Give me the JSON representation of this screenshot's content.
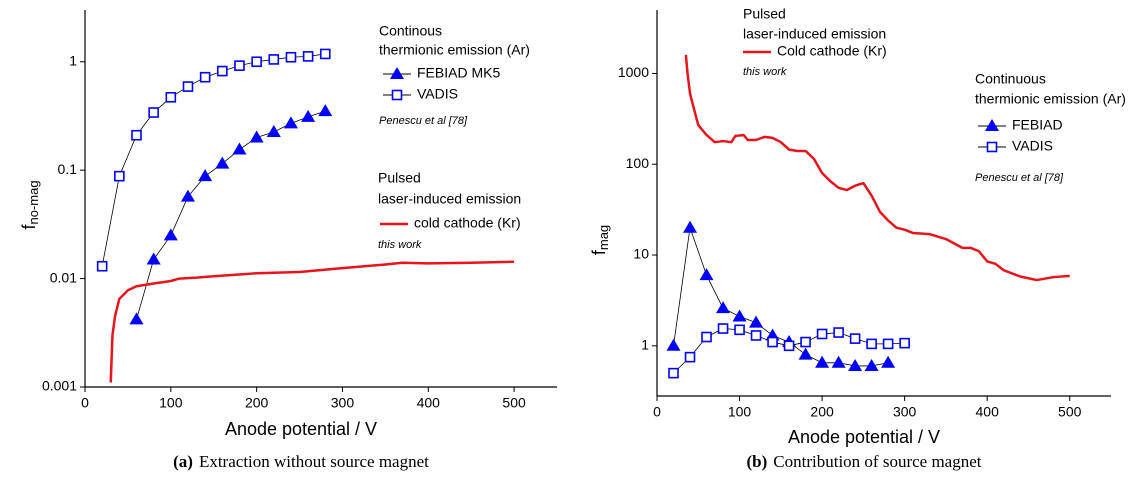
{
  "chart_data": [
    {
      "type": "line",
      "log_y": true,
      "xlabel": "Anode potential / V",
      "ylabel": "f",
      "ylabel_sub": "no-mag",
      "caption_label": "(a)",
      "caption": "Extraction without source magnet",
      "xlim": [
        0,
        550
      ],
      "xticks": [
        0,
        100,
        200,
        300,
        400,
        500
      ],
      "ylim": [
        0.001,
        3
      ],
      "yticks": [
        0.001,
        0.01,
        0.1,
        1
      ],
      "annotations": [
        "Continous",
        "thermionic emission (Ar)",
        "Penescu et al [78]",
        "Pulsed",
        "laser-induced emission",
        "this work"
      ],
      "series": [
        {
          "name": "FEBIAD MK5",
          "color": "#0000ff",
          "line_color": "#000000",
          "marker": "triangle",
          "x": [
            60,
            80,
            100,
            120,
            140,
            160,
            180,
            200,
            220,
            240,
            260,
            280
          ],
          "values": [
            0.0042,
            0.015,
            0.025,
            0.057,
            0.088,
            0.115,
            0.155,
            0.2,
            0.225,
            0.27,
            0.31,
            0.35
          ]
        },
        {
          "name": "VADIS",
          "color": "#0000ff",
          "line_color": "#000000",
          "marker": "open-square",
          "x": [
            20,
            40,
            60,
            80,
            100,
            120,
            140,
            160,
            180,
            200,
            220,
            240,
            260,
            280
          ],
          "values": [
            0.013,
            0.088,
            0.21,
            0.34,
            0.47,
            0.59,
            0.72,
            0.82,
            0.92,
            1.0,
            1.05,
            1.1,
            1.12,
            1.18
          ]
        },
        {
          "name": "cold cathode (Kr)",
          "color": "#e8141c",
          "line_color": "#e8141c",
          "x": [
            30,
            32,
            35,
            40,
            50,
            60,
            80,
            100,
            110,
            130,
            150,
            200,
            250,
            300,
            350,
            370,
            400,
            450,
            500
          ],
          "values": [
            0.0011,
            0.003,
            0.0045,
            0.0065,
            0.0078,
            0.0085,
            0.009,
            0.0095,
            0.01,
            0.0102,
            0.0105,
            0.0112,
            0.0115,
            0.0125,
            0.0135,
            0.014,
            0.0138,
            0.014,
            0.0143
          ]
        }
      ]
    },
    {
      "type": "line",
      "log_y": true,
      "xlabel": "Anode potential / V",
      "ylabel": "f",
      "ylabel_sub": "mag",
      "caption_label": "(b)",
      "caption": "Contribution of source magnet",
      "xlim": [
        0,
        550
      ],
      "xticks": [
        0,
        100,
        200,
        300,
        400,
        500
      ],
      "ylim": [
        0.28,
        5000
      ],
      "yticks": [
        1,
        10,
        100,
        1000
      ],
      "annotations": [
        "Pulsed",
        "laser-induced emission",
        "this work",
        "Continuous",
        "thermionic emission (Ar)",
        "Penescu et al [78]"
      ],
      "series": [
        {
          "name": "Cold cathode (Kr)",
          "color": "#e8141c",
          "line_color": "#e8141c",
          "x": [
            35,
            37,
            40,
            45,
            50,
            60,
            70,
            80,
            90,
            95,
            105,
            110,
            120,
            130,
            140,
            150,
            160,
            170,
            180,
            190,
            200,
            210,
            220,
            230,
            240,
            250,
            260,
            270,
            280,
            290,
            300,
            310,
            330,
            350,
            370,
            380,
            390,
            400,
            410,
            420,
            440,
            460,
            480,
            500
          ],
          "values": [
            1600,
            1000,
            600,
            400,
            270,
            210,
            175,
            180,
            175,
            205,
            210,
            185,
            185,
            200,
            195,
            175,
            145,
            140,
            140,
            115,
            80,
            65,
            55,
            52,
            58,
            62,
            45,
            30,
            24,
            20,
            19,
            17.5,
            17,
            15,
            12,
            12,
            11,
            8.5,
            8,
            6.8,
            5.8,
            5.3,
            5.7,
            5.9
          ]
        },
        {
          "name": "FEBIAD",
          "color": "#0000ff",
          "line_color": "#000000",
          "marker": "triangle",
          "x": [
            20,
            40,
            60,
            80,
            100,
            120,
            140,
            160,
            180,
            200,
            220,
            240,
            260,
            280
          ],
          "values": [
            1.0,
            20,
            6,
            2.6,
            2.1,
            1.8,
            1.3,
            1.1,
            0.8,
            0.65,
            0.65,
            0.6,
            0.6,
            0.65
          ]
        },
        {
          "name": "VADIS",
          "color": "#0000ff",
          "line_color": "#000000",
          "marker": "open-square",
          "x": [
            20,
            40,
            60,
            80,
            100,
            120,
            140,
            160,
            180,
            200,
            220,
            240,
            260,
            280,
            300
          ],
          "values": [
            0.5,
            0.75,
            1.25,
            1.55,
            1.5,
            1.3,
            1.1,
            1.0,
            1.1,
            1.35,
            1.4,
            1.2,
            1.05,
            1.05,
            1.07
          ]
        }
      ]
    }
  ]
}
